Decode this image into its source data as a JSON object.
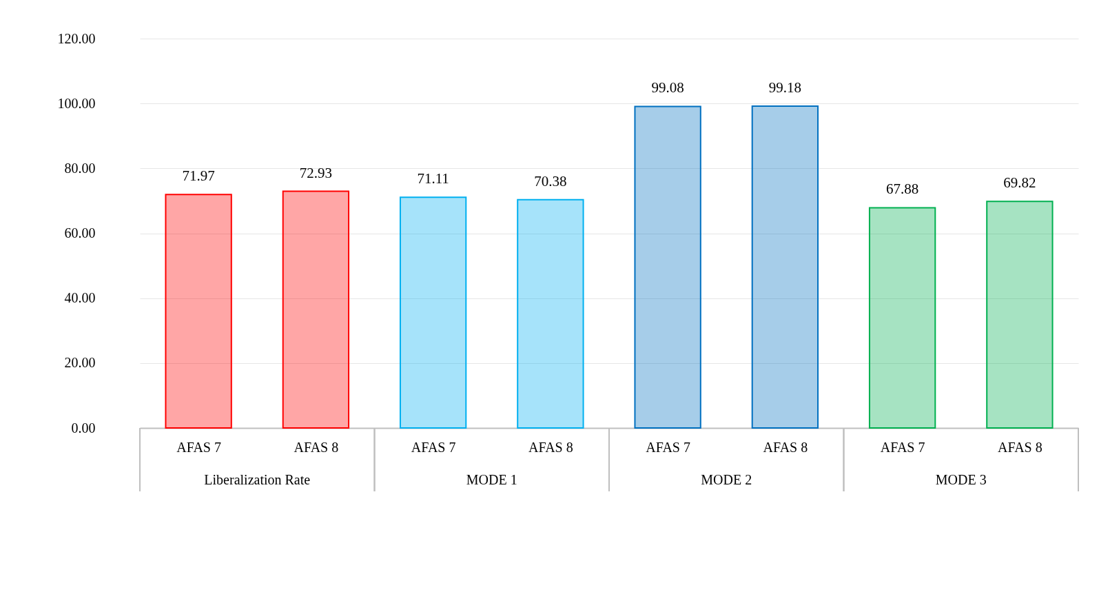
{
  "chart_data": {
    "type": "bar",
    "categories": [
      "AFAS 7",
      "AFAS 8",
      "AFAS 7",
      "AFAS 8",
      "AFAS 7",
      "AFAS 8",
      "AFAS 7",
      "AFAS 8"
    ],
    "values": [
      71.97,
      72.93,
      71.11,
      70.38,
      99.08,
      99.18,
      67.88,
      69.82
    ],
    "colors": [
      "#ff0000",
      "#ff0000",
      "#00b0f0",
      "#00b0f0",
      "#0070c0",
      "#0070c0",
      "#00b050",
      "#00b050"
    ],
    "annotations": [
      "Liberalization Rate",
      "MODE 1",
      "MODE 2",
      "MODE 3"
    ],
    "ylim": [
      0,
      120
    ],
    "yticks": [
      {
        "value": 0,
        "label": "0.00"
      },
      {
        "value": 20,
        "label": "20.00"
      },
      {
        "value": 40,
        "label": "40.00"
      },
      {
        "value": 60,
        "label": "60.00"
      },
      {
        "value": 80,
        "label": "80.00"
      },
      {
        "value": 100,
        "label": "100.00"
      },
      {
        "value": 120,
        "label": "120.00"
      }
    ],
    "grid": "y",
    "data_labels": true
  }
}
